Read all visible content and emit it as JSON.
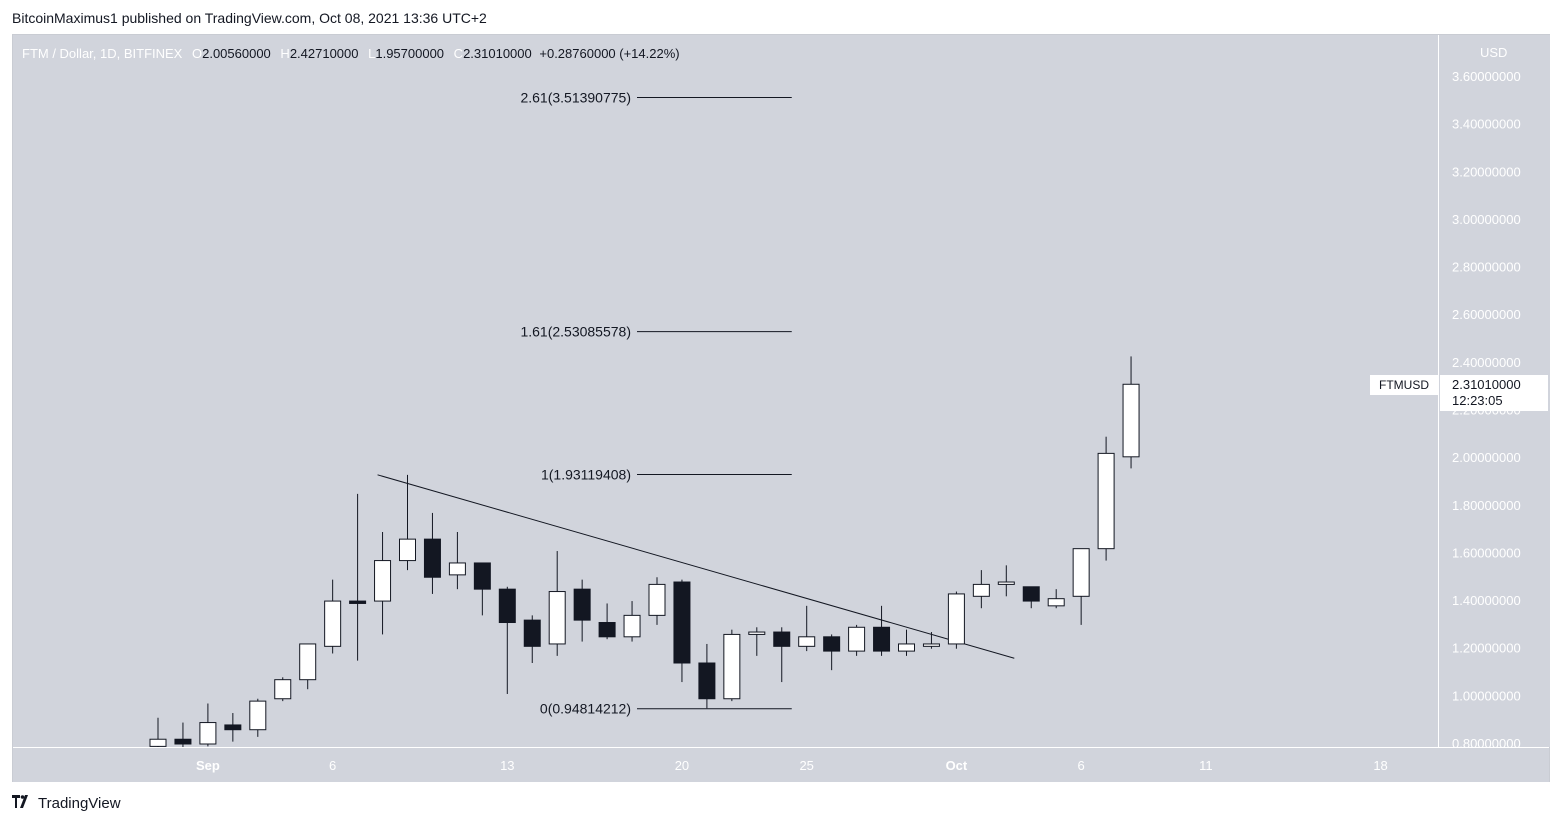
{
  "publisher_line": "BitcoinMaximus1 published on TradingView.com, Oct 08, 2021 13:36 UTC+2",
  "legend": {
    "symbol": "FTM / Dollar, 1D, BITFINEX",
    "o_label": "O",
    "o_value": "2.00560000",
    "h_label": "H",
    "h_value": "2.42710000",
    "l_label": "L",
    "l_value": "1.95700000",
    "c_label": "C",
    "c_value": "2.31010000",
    "change": "+0.28760000 (+14.22%)"
  },
  "currency": "USD",
  "ticker_tag": "FTMUSD",
  "price_tag": {
    "price": "2.31010000",
    "countdown": "12:23:05"
  },
  "footer_logo": "TradingView",
  "icons": {
    "logo": "tradingview-logo-icon"
  },
  "colors": {
    "background": "#d1d4dc",
    "up_fill": "#ffffff",
    "down_fill": "#131722",
    "wick": "#131722",
    "text_light": "#ffffff"
  },
  "chart_data": {
    "type": "candlestick",
    "title": "",
    "xlabel": "",
    "ylabel": "",
    "ylim": [
      0.8,
      3.6
    ],
    "y_ticks": [
      "3.60000000",
      "3.40000000",
      "3.20000000",
      "3.00000000",
      "2.80000000",
      "2.60000000",
      "2.40000000",
      "2.20000000",
      "2.00000000",
      "1.80000000",
      "1.60000000",
      "1.40000000",
      "1.20000000",
      "1.00000000",
      "0.80000000"
    ],
    "y_tick_values": [
      3.6,
      3.4,
      3.2,
      3.0,
      2.8,
      2.6,
      2.4,
      2.2,
      2.0,
      1.8,
      1.6,
      1.4,
      1.2,
      1.0,
      0.8
    ],
    "x_ticks": [
      {
        "label": "Sep",
        "day": 1
      },
      {
        "label": "6",
        "day": 6
      },
      {
        "label": "13",
        "day": 13
      },
      {
        "label": "20",
        "day": 20
      },
      {
        "label": "25",
        "day": 25
      },
      {
        "label": "Oct",
        "day": 31
      },
      {
        "label": "6",
        "day": 36
      },
      {
        "label": "11",
        "day": 41
      },
      {
        "label": "18",
        "day": 48
      }
    ],
    "candles": [
      {
        "date": "2021-08-30",
        "o": 0.79,
        "h": 0.91,
        "l": 0.78,
        "c": 0.82
      },
      {
        "date": "2021-08-31",
        "o": 0.82,
        "h": 0.89,
        "l": 0.77,
        "c": 0.8
      },
      {
        "date": "2021-09-01",
        "o": 0.8,
        "h": 0.97,
        "l": 0.79,
        "c": 0.89
      },
      {
        "date": "2021-09-02",
        "o": 0.88,
        "h": 0.93,
        "l": 0.81,
        "c": 0.86
      },
      {
        "date": "2021-09-03",
        "o": 0.86,
        "h": 0.99,
        "l": 0.83,
        "c": 0.98
      },
      {
        "date": "2021-09-04",
        "o": 0.99,
        "h": 1.08,
        "l": 0.98,
        "c": 1.07
      },
      {
        "date": "2021-09-05",
        "o": 1.07,
        "h": 1.2,
        "l": 1.03,
        "c": 1.22
      },
      {
        "date": "2021-09-06",
        "o": 1.21,
        "h": 1.49,
        "l": 1.18,
        "c": 1.4
      },
      {
        "date": "2021-09-07",
        "o": 1.4,
        "h": 1.85,
        "l": 1.15,
        "c": 1.39
      },
      {
        "date": "2021-09-08",
        "o": 1.4,
        "h": 1.69,
        "l": 1.26,
        "c": 1.57
      },
      {
        "date": "2021-09-09",
        "o": 1.57,
        "h": 1.93,
        "l": 1.53,
        "c": 1.66
      },
      {
        "date": "2021-09-10",
        "o": 1.66,
        "h": 1.77,
        "l": 1.43,
        "c": 1.5
      },
      {
        "date": "2021-09-11",
        "o": 1.51,
        "h": 1.69,
        "l": 1.45,
        "c": 1.56
      },
      {
        "date": "2021-09-12",
        "o": 1.56,
        "h": 1.56,
        "l": 1.34,
        "c": 1.45
      },
      {
        "date": "2021-09-13",
        "o": 1.45,
        "h": 1.46,
        "l": 1.01,
        "c": 1.31
      },
      {
        "date": "2021-09-14",
        "o": 1.32,
        "h": 1.34,
        "l": 1.14,
        "c": 1.21
      },
      {
        "date": "2021-09-15",
        "o": 1.22,
        "h": 1.61,
        "l": 1.17,
        "c": 1.44
      },
      {
        "date": "2021-09-16",
        "o": 1.45,
        "h": 1.49,
        "l": 1.23,
        "c": 1.32
      },
      {
        "date": "2021-09-17",
        "o": 1.31,
        "h": 1.39,
        "l": 1.24,
        "c": 1.25
      },
      {
        "date": "2021-09-18",
        "o": 1.25,
        "h": 1.4,
        "l": 1.23,
        "c": 1.34
      },
      {
        "date": "2021-09-19",
        "o": 1.34,
        "h": 1.5,
        "l": 1.3,
        "c": 1.47
      },
      {
        "date": "2021-09-20",
        "o": 1.48,
        "h": 1.49,
        "l": 1.06,
        "c": 1.14
      },
      {
        "date": "2021-09-21",
        "o": 1.14,
        "h": 1.22,
        "l": 0.95,
        "c": 0.99
      },
      {
        "date": "2021-09-22",
        "o": 0.99,
        "h": 1.28,
        "l": 0.98,
        "c": 1.26
      },
      {
        "date": "2021-09-23",
        "o": 1.26,
        "h": 1.29,
        "l": 1.17,
        "c": 1.27
      },
      {
        "date": "2021-09-24",
        "o": 1.27,
        "h": 1.29,
        "l": 1.06,
        "c": 1.21
      },
      {
        "date": "2021-09-25",
        "o": 1.21,
        "h": 1.38,
        "l": 1.19,
        "c": 1.25
      },
      {
        "date": "2021-09-26",
        "o": 1.25,
        "h": 1.26,
        "l": 1.11,
        "c": 1.19
      },
      {
        "date": "2021-09-27",
        "o": 1.19,
        "h": 1.3,
        "l": 1.17,
        "c": 1.29
      },
      {
        "date": "2021-09-28",
        "o": 1.29,
        "h": 1.38,
        "l": 1.17,
        "c": 1.19
      },
      {
        "date": "2021-09-29",
        "o": 1.19,
        "h": 1.28,
        "l": 1.17,
        "c": 1.22
      },
      {
        "date": "2021-09-30",
        "o": 1.21,
        "h": 1.27,
        "l": 1.2,
        "c": 1.22
      },
      {
        "date": "2021-10-01",
        "o": 1.22,
        "h": 1.44,
        "l": 1.2,
        "c": 1.43
      },
      {
        "date": "2021-10-02",
        "o": 1.42,
        "h": 1.53,
        "l": 1.37,
        "c": 1.47
      },
      {
        "date": "2021-10-03",
        "o": 1.47,
        "h": 1.55,
        "l": 1.42,
        "c": 1.48
      },
      {
        "date": "2021-10-04",
        "o": 1.46,
        "h": 1.46,
        "l": 1.37,
        "c": 1.4
      },
      {
        "date": "2021-10-05",
        "o": 1.38,
        "h": 1.45,
        "l": 1.37,
        "c": 1.41
      },
      {
        "date": "2021-10-06",
        "o": 1.42,
        "h": 1.62,
        "l": 1.3,
        "c": 1.62
      },
      {
        "date": "2021-10-07",
        "o": 1.62,
        "h": 2.09,
        "l": 1.57,
        "c": 2.02
      },
      {
        "date": "2021-10-08",
        "o": 2.0056,
        "h": 2.4271,
        "l": 1.957,
        "c": 2.3101
      }
    ],
    "fib_levels": [
      {
        "label": "2.61(3.51390775)",
        "value": 3.51390775
      },
      {
        "label": "1.61(2.53085578)",
        "value": 2.53085578
      },
      {
        "label": "1(1.93119408)",
        "value": 1.93119408
      },
      {
        "label": "0(0.94814212)",
        "value": 0.94814212
      }
    ],
    "fib_extent": {
      "from_date": "2021-09-19",
      "to_date": "2021-09-24"
    },
    "trendline": {
      "from": {
        "date": "2021-09-08",
        "value": 1.93
      },
      "to": {
        "date": "2021-10-03",
        "value": 1.16
      }
    }
  }
}
